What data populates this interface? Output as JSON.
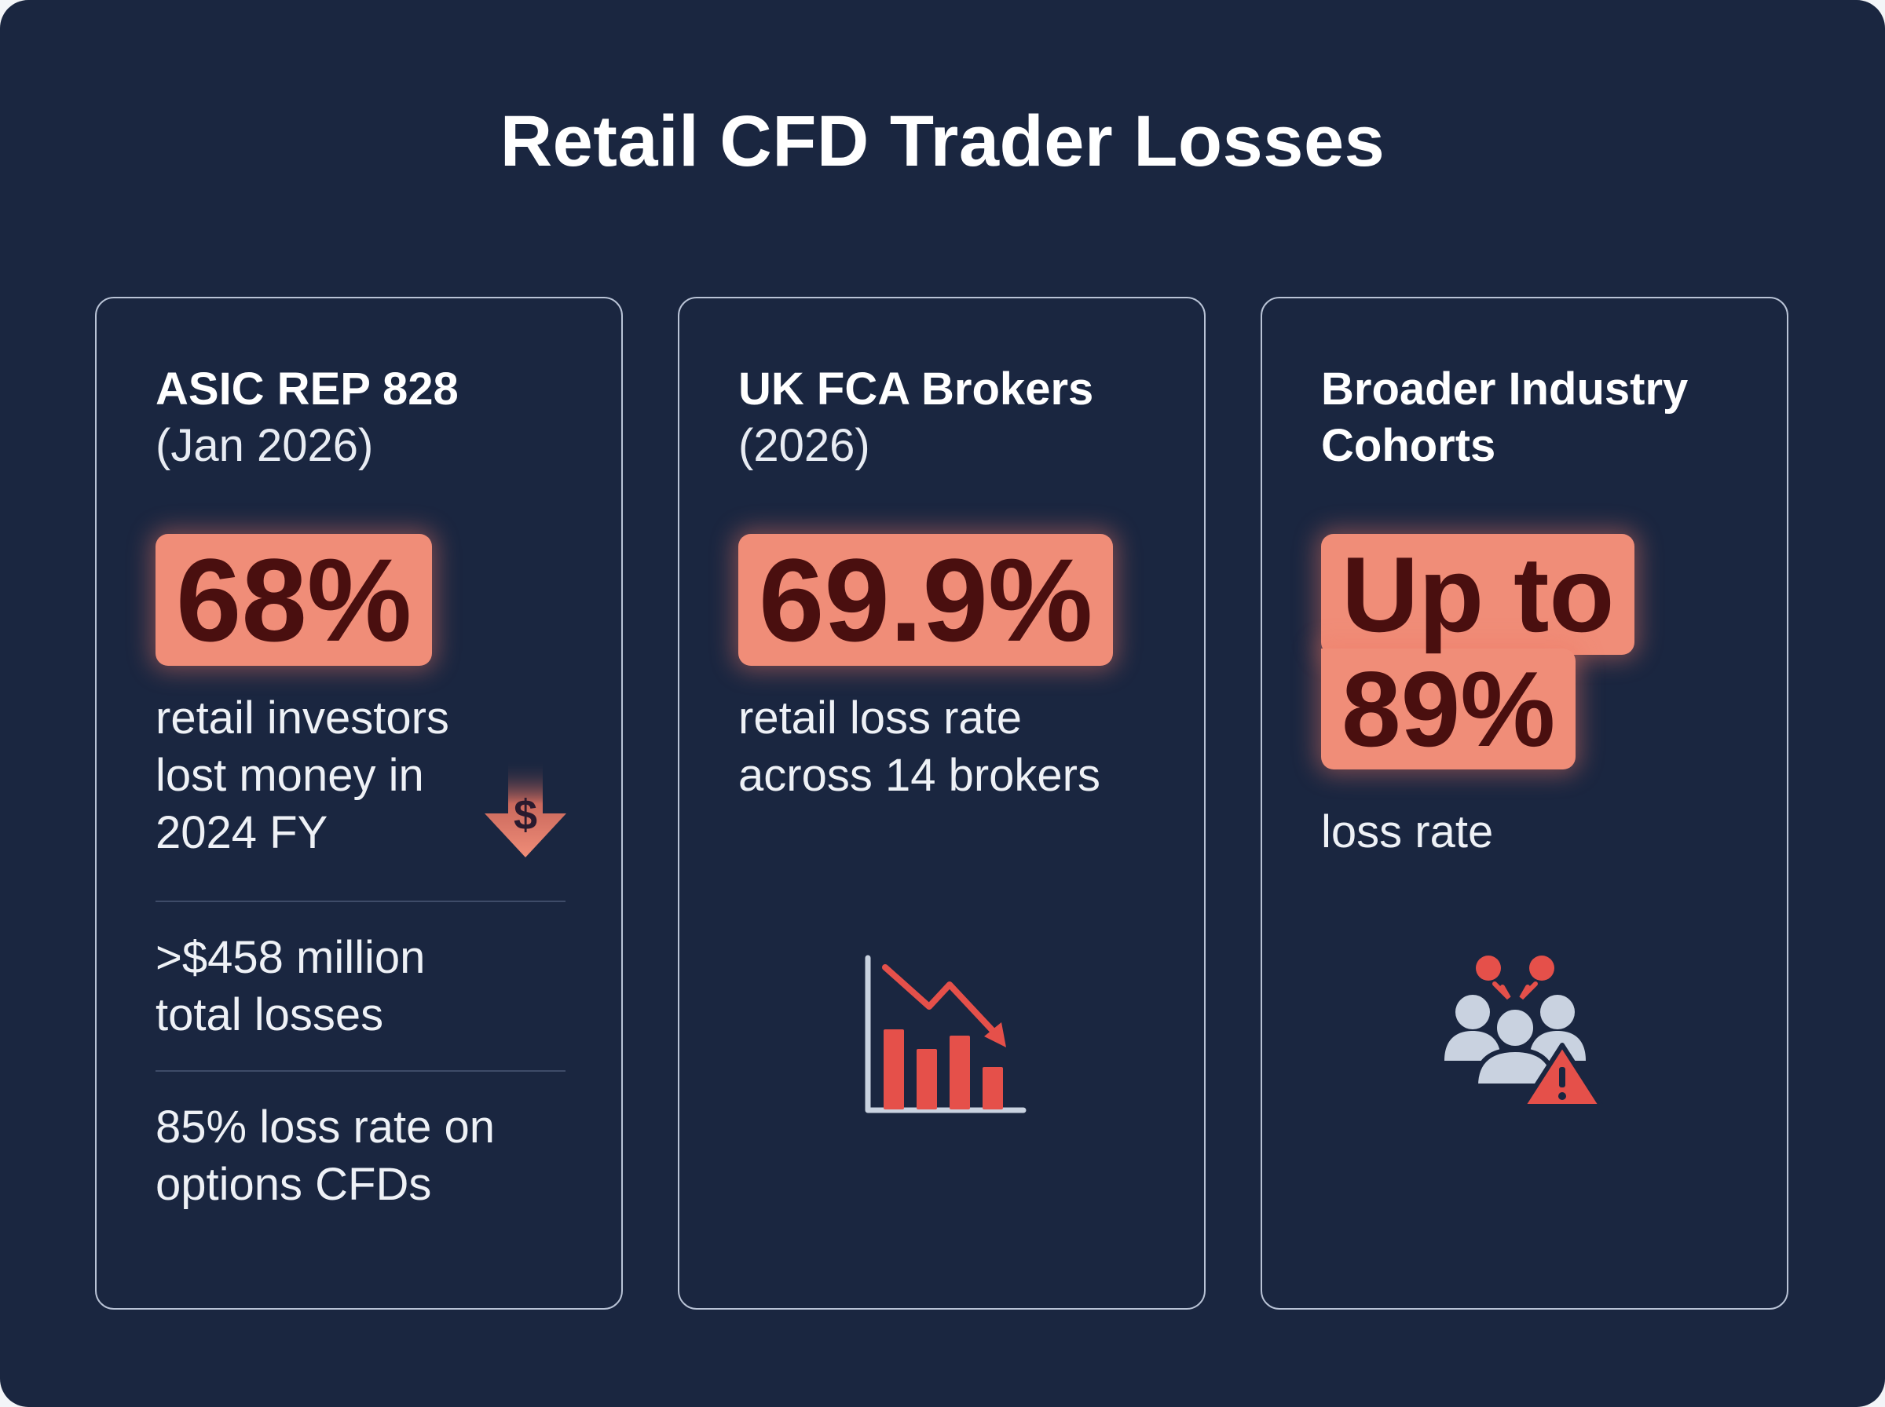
{
  "title": "Retail CFD Trader Losses",
  "colors": {
    "background": "#1a2640",
    "highlight": "#f08d78",
    "highlight_text": "#4a0f0f",
    "icon_red": "#e5504a",
    "icon_gray": "#c9d2e0"
  },
  "cards": [
    {
      "heading_bold": "ASIC REP 828",
      "heading_sub": "(Jan 2026)",
      "stat": "68%",
      "stat_desc": "retail investors lost money in 2024 FY",
      "stat_desc_lines": [
        "retail investors",
        "lost money in",
        "2024 FY"
      ],
      "extra_1": ">$458 million total losses",
      "extra_1_lines": [
        ">$458 million",
        "total losses"
      ],
      "extra_2": "85% loss rate on options CFDs",
      "extra_2_lines": [
        "85% loss rate on",
        "options CFDs"
      ],
      "icon": "dollar-down-arrow-icon"
    },
    {
      "heading_bold": "UK FCA Brokers",
      "heading_sub": "(2026)",
      "stat": "69.9%",
      "stat_desc_lines": [
        "retail loss rate",
        "across 14 brokers"
      ],
      "icon": "declining-bar-chart-icon"
    },
    {
      "heading_bold": "Broader Industry Cohorts",
      "heading_bold_lines": [
        "Broader Industry",
        "Cohorts"
      ],
      "stat_lines": [
        "Up to",
        "89%"
      ],
      "stat_desc": "loss rate",
      "icon": "people-warning-icon"
    }
  ]
}
